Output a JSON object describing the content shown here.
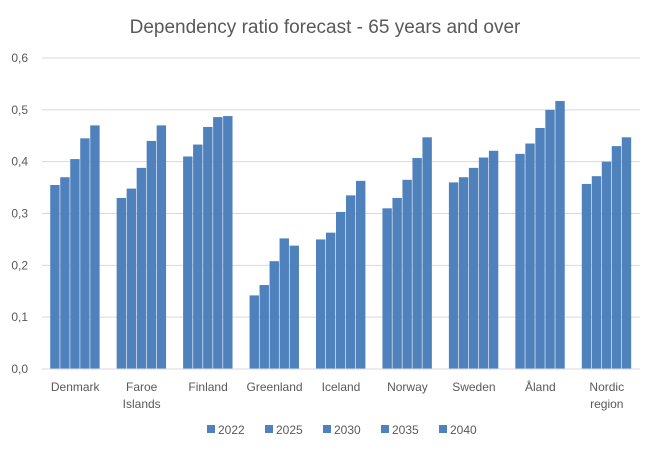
{
  "chart_data": {
    "type": "bar",
    "title": "Dependency ratio forecast - 65 years and over",
    "xlabel": "",
    "ylabel": "",
    "ylim": [
      0,
      0.6
    ],
    "yticks": [
      "0,0",
      "0,1",
      "0,2",
      "0,3",
      "0,4",
      "0,5",
      "0,6"
    ],
    "grid": true,
    "legend_position": "bottom",
    "bar_color": "#4f81bd",
    "categories": [
      [
        "Denmark"
      ],
      [
        "Faroe",
        "Islands"
      ],
      [
        "Finland"
      ],
      [
        "Greenland"
      ],
      [
        "Iceland"
      ],
      [
        "Norway"
      ],
      [
        "Sweden"
      ],
      [
        "Åland"
      ],
      [
        "Nordic",
        "region"
      ]
    ],
    "series": [
      {
        "name": "2022",
        "values": [
          0.355,
          0.33,
          0.41,
          0.142,
          0.25,
          0.31,
          0.36,
          0.415,
          0.357
        ]
      },
      {
        "name": "2025",
        "values": [
          0.37,
          0.348,
          0.433,
          0.162,
          0.263,
          0.33,
          0.37,
          0.435,
          0.372
        ]
      },
      {
        "name": "2030",
        "values": [
          0.405,
          0.388,
          0.467,
          0.208,
          0.303,
          0.365,
          0.388,
          0.465,
          0.4
        ]
      },
      {
        "name": "2035",
        "values": [
          0.445,
          0.44,
          0.486,
          0.252,
          0.335,
          0.407,
          0.408,
          0.5,
          0.43
        ]
      },
      {
        "name": "2040",
        "values": [
          0.47,
          0.47,
          0.488,
          0.238,
          0.363,
          0.447,
          0.421,
          0.517,
          0.447
        ]
      }
    ]
  }
}
